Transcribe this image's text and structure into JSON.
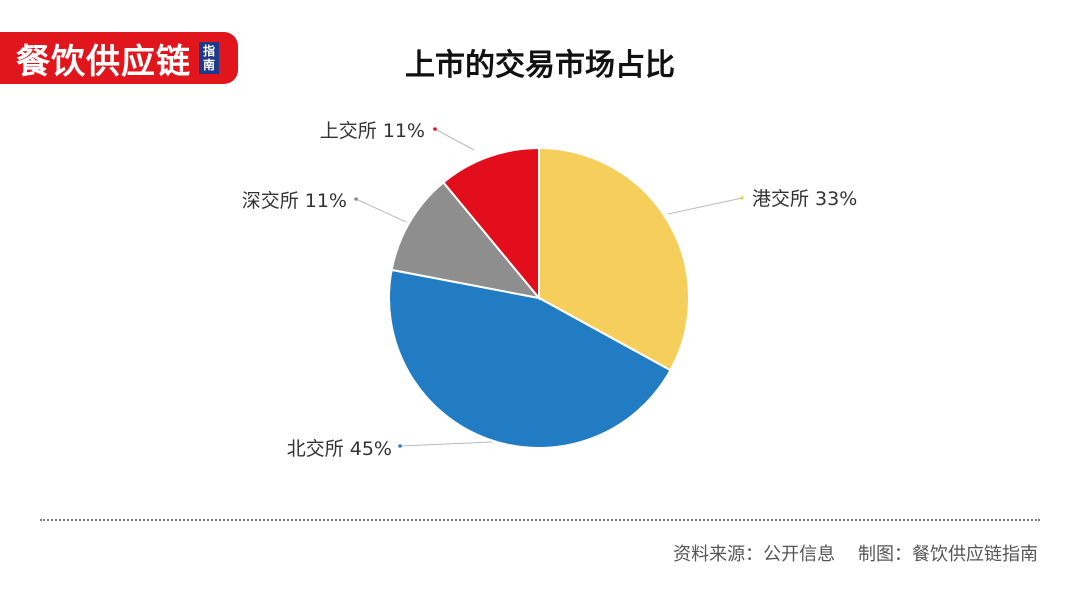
{
  "logo": {
    "text": "餐饮供应链",
    "badge": "指南"
  },
  "chart_data": {
    "type": "pie",
    "title": "上市的交易市场占比",
    "slices": [
      {
        "label": "港交所",
        "value": 33,
        "display": "港交所 33%",
        "color": "#f5ce5b"
      },
      {
        "label": "北交所",
        "value": 45,
        "display": "北交所 45%",
        "color": "#227cc4"
      },
      {
        "label": "深交所",
        "value": 11,
        "display": "深交所 11%",
        "color": "#8e8e8e"
      },
      {
        "label": "上交所",
        "value": 11,
        "display": "上交所 11%",
        "color": "#e20e1b"
      }
    ],
    "start": "12 o'clock",
    "direction": "clockwise"
  },
  "footer": {
    "source": "资料来源：公开信息",
    "maker": "制图：餐饮供应链指南"
  }
}
